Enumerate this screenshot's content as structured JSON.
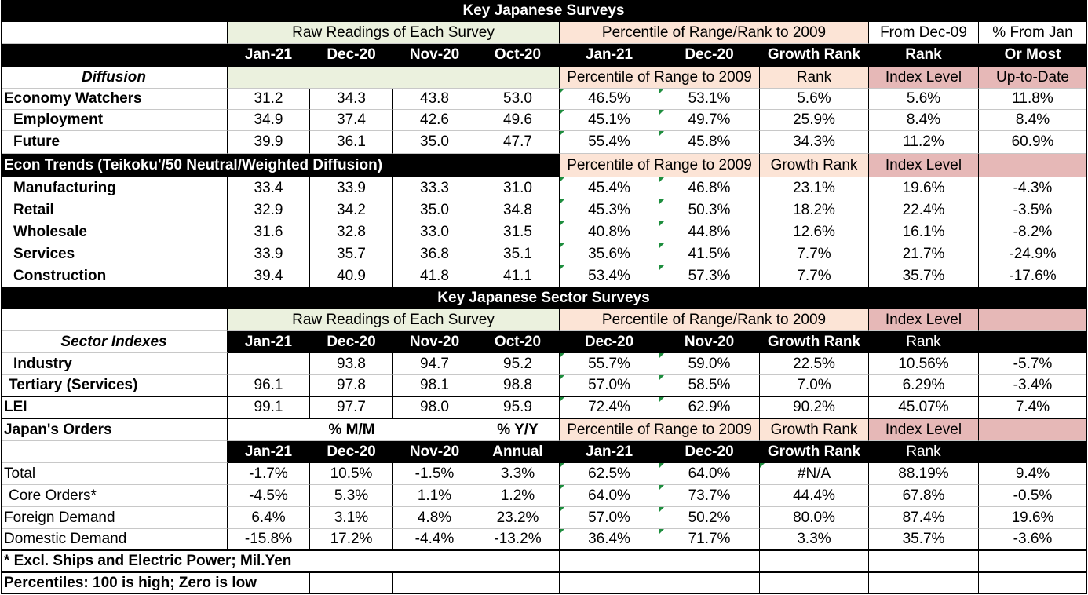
{
  "title_main": "Key Japanese Surveys",
  "title_sector": "Key Japanese Sector Surveys",
  "hdr": {
    "raw": "Raw Readings of Each Survey",
    "pctl_rank": "Percentile of Range/Rank to 2009",
    "from_dec09": "From Dec-09",
    "pct_from_jan": "% From Jan",
    "rank": "Rank",
    "or_most": "Or Most",
    "pctl_range": "Percentile of Range to 2009",
    "index_level": "Index Level",
    "up_to_date": "Up-to-Date",
    "growth_rank": "Growth Rank",
    "mm": "% M/M",
    "yy": "% Y/Y",
    "annual": "Annual"
  },
  "months1": [
    "Jan-21",
    "Dec-20",
    "Nov-20",
    "Oct-20",
    "Jan-21",
    "Dec-20"
  ],
  "months2": [
    "Jan-21",
    "Dec-20",
    "Nov-20",
    "Oct-20",
    "Dec-20",
    "Nov-20"
  ],
  "months3": [
    "Jan-21",
    "Dec-20",
    "Nov-20",
    "Jan-21",
    "Dec-20"
  ],
  "labels": {
    "diffusion": "Diffusion",
    "econ_trends": "Econ Trends (Teikoku'/50 Neutral/Weighted Diffusion)",
    "sector_indexes": "Sector Indexes",
    "lei": "LEI",
    "orders": "Japan's Orders",
    "note1": "* Excl. Ships and Electric Power; Mil.Yen",
    "note2": "Percentiles: 100 is high; Zero is low"
  },
  "rows": {
    "econ_watchers": [
      "Economy Watchers",
      "31.2",
      "34.3",
      "43.8",
      "53.0",
      "46.5%",
      "53.1%",
      "5.6%",
      "5.6%",
      "11.8%"
    ],
    "employment": [
      "Employment",
      "34.9",
      "37.4",
      "42.6",
      "49.6",
      "45.1%",
      "49.7%",
      "25.9%",
      "8.4%",
      "8.4%"
    ],
    "future": [
      "Future",
      "39.9",
      "36.1",
      "35.0",
      "47.7",
      "55.4%",
      "45.8%",
      "34.3%",
      "11.2%",
      "60.9%"
    ],
    "manufacturing": [
      "Manufacturing",
      "33.4",
      "33.9",
      "33.3",
      "31.0",
      "45.4%",
      "46.8%",
      "23.1%",
      "19.6%",
      "-4.3%"
    ],
    "retail": [
      "Retail",
      "32.9",
      "34.2",
      "35.0",
      "34.8",
      "45.3%",
      "50.3%",
      "18.2%",
      "22.4%",
      "-3.5%"
    ],
    "wholesale": [
      "Wholesale",
      "31.6",
      "32.8",
      "33.0",
      "31.5",
      "40.8%",
      "44.8%",
      "12.6%",
      "16.1%",
      "-8.2%"
    ],
    "services": [
      "Services",
      "33.9",
      "35.7",
      "36.8",
      "35.1",
      "35.6%",
      "41.5%",
      "7.7%",
      "21.7%",
      "-24.9%"
    ],
    "construction": [
      "Construction",
      "39.4",
      "40.9",
      "41.8",
      "41.1",
      "53.4%",
      "57.3%",
      "7.7%",
      "35.7%",
      "-17.6%"
    ],
    "industry": [
      "Industry",
      "",
      "93.8",
      "94.7",
      "95.2",
      "55.7%",
      "59.0%",
      "22.5%",
      "10.56%",
      "-5.7%"
    ],
    "tertiary": [
      "Tertiary (Services)",
      "96.1",
      "97.8",
      "98.1",
      "98.8",
      "57.0%",
      "58.5%",
      "7.0%",
      "6.29%",
      "-3.4%"
    ],
    "lei": [
      "LEI",
      "99.1",
      "97.7",
      "98.0",
      "95.9",
      "72.4%",
      "62.9%",
      "90.2%",
      "45.07%",
      "7.4%"
    ],
    "total": [
      "Total",
      "-1.7%",
      "10.5%",
      "-1.5%",
      "3.3%",
      "62.5%",
      "64.0%",
      "#N/A",
      "88.19%",
      "9.4%"
    ],
    "core": [
      "Core Orders*",
      "-4.5%",
      "5.3%",
      "1.1%",
      "1.2%",
      "64.0%",
      "73.7%",
      "44.4%",
      "67.8%",
      "-0.5%"
    ],
    "foreign": [
      "Foreign Demand",
      "6.4%",
      "3.1%",
      "4.8%",
      "23.2%",
      "57.0%",
      "50.2%",
      "80.0%",
      "87.4%",
      "19.6%"
    ],
    "domestic": [
      "Domestic Demand",
      "-15.8%",
      "17.2%",
      "-4.4%",
      "-13.2%",
      "36.4%",
      "71.7%",
      "3.3%",
      "35.7%",
      "-3.6%"
    ]
  }
}
